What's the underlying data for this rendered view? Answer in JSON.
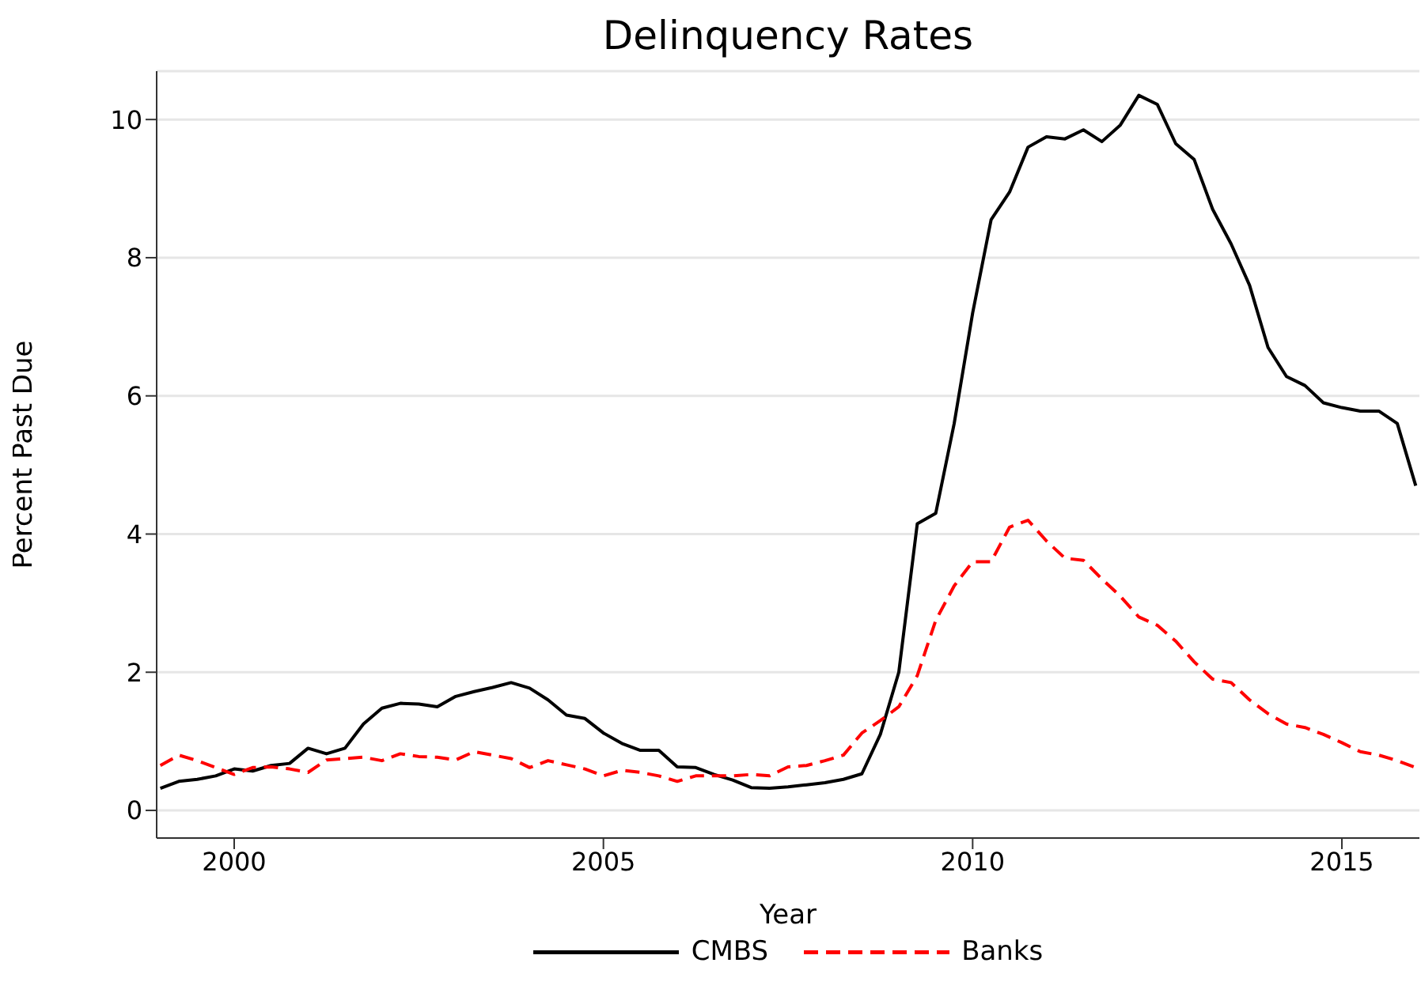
{
  "chart_data": {
    "type": "line",
    "title": "Delinquency Rates",
    "xlabel": "Year",
    "ylabel": "Percent Past Due",
    "x": [
      1999,
      1999.25,
      1999.5,
      1999.75,
      2000,
      2000.25,
      2000.5,
      2000.75,
      2001,
      2001.25,
      2001.5,
      2001.75,
      2002,
      2002.25,
      2002.5,
      2002.75,
      2003,
      2003.25,
      2003.5,
      2003.75,
      2004,
      2004.25,
      2004.5,
      2004.75,
      2005,
      2005.25,
      2005.5,
      2005.75,
      2006,
      2006.25,
      2006.5,
      2006.75,
      2007,
      2007.25,
      2007.5,
      2007.75,
      2008,
      2008.25,
      2008.5,
      2008.75,
      2009,
      2009.25,
      2009.5,
      2009.75,
      2010,
      2010.25,
      2010.5,
      2010.75,
      2011,
      2011.25,
      2011.5,
      2011.75,
      2012,
      2012.25,
      2012.5,
      2012.75,
      2013,
      2013.25,
      2013.5,
      2013.75,
      2014,
      2014.25,
      2014.5,
      2014.75,
      2015,
      2015.25,
      2015.5,
      2015.75,
      2016
    ],
    "series": [
      {
        "name": "CMBS",
        "color": "#000000",
        "line_style": "solid",
        "values": [
          0.32,
          0.42,
          0.45,
          0.5,
          0.6,
          0.57,
          0.65,
          0.68,
          0.9,
          0.82,
          0.9,
          1.25,
          1.48,
          1.55,
          1.54,
          1.5,
          1.65,
          1.72,
          1.78,
          1.85,
          1.77,
          1.6,
          1.38,
          1.33,
          1.12,
          0.97,
          0.87,
          0.87,
          0.63,
          0.62,
          0.52,
          0.44,
          0.33,
          0.32,
          0.34,
          0.37,
          0.4,
          0.45,
          0.53,
          1.1,
          2.0,
          4.15,
          4.3,
          5.6,
          7.2,
          8.55,
          8.95,
          9.6,
          9.75,
          9.72,
          9.85,
          9.68,
          9.92,
          10.35,
          10.22,
          9.65,
          9.42,
          8.7,
          8.2,
          7.6,
          6.7,
          6.28,
          6.15,
          5.9,
          5.83,
          5.78,
          5.78,
          5.6,
          4.7
        ]
      },
      {
        "name": "Banks",
        "color": "#ff0000",
        "line_style": "dashed",
        "values": [
          0.65,
          0.8,
          0.72,
          0.62,
          0.52,
          0.62,
          0.63,
          0.6,
          0.55,
          0.73,
          0.75,
          0.77,
          0.72,
          0.82,
          0.78,
          0.77,
          0.73,
          0.85,
          0.8,
          0.75,
          0.62,
          0.72,
          0.66,
          0.6,
          0.5,
          0.58,
          0.55,
          0.5,
          0.42,
          0.5,
          0.5,
          0.5,
          0.52,
          0.5,
          0.63,
          0.65,
          0.72,
          0.8,
          1.12,
          1.3,
          1.5,
          1.95,
          2.75,
          3.25,
          3.6,
          3.6,
          4.1,
          4.2,
          3.9,
          3.65,
          3.62,
          3.35,
          3.1,
          2.8,
          2.68,
          2.45,
          2.15,
          1.9,
          1.85,
          1.6,
          1.4,
          1.25,
          1.2,
          1.1,
          0.98,
          0.85,
          0.8,
          0.72,
          0.62
        ]
      }
    ],
    "xlim": [
      1998.95,
      2016.05
    ],
    "xticks": [
      2000,
      2005,
      2010,
      2015
    ],
    "ylim": [
      -0.4,
      10.7
    ],
    "yticks": [
      0,
      2,
      4,
      6,
      8,
      10
    ],
    "grid": "y",
    "legend": "bottom",
    "marker": "none"
  }
}
